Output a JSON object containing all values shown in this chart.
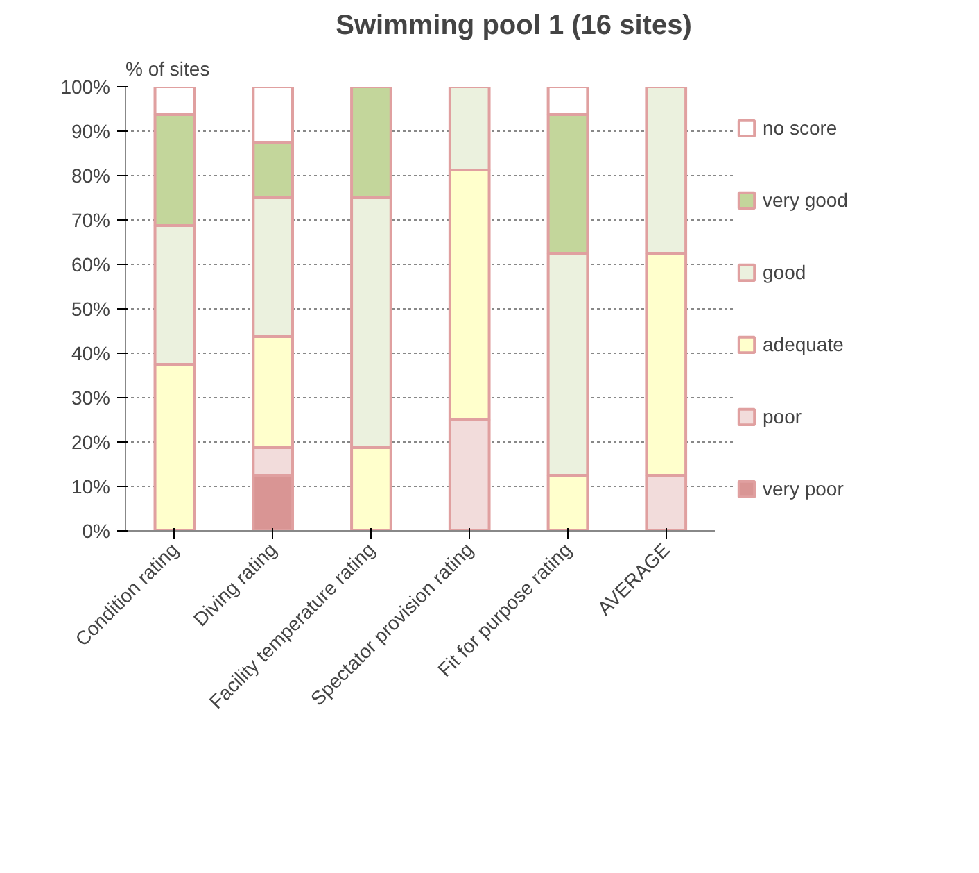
{
  "chart_data": {
    "type": "bar",
    "title": "Swimming pool 1 (16 sites)",
    "ylabel": "% of sites",
    "stacked": true,
    "categories": [
      "Condition rating",
      "Diving rating",
      "Facility temperature rating",
      "Spectator provision rating",
      "Fit for purpose rating",
      "AVERAGE"
    ],
    "series": [
      {
        "name": "very poor",
        "color": "#d99594",
        "values": [
          0,
          12.5,
          0,
          0,
          0,
          0
        ]
      },
      {
        "name": "poor",
        "color": "#f2dcdb",
        "values": [
          0,
          6.25,
          0,
          25,
          0,
          12.5
        ]
      },
      {
        "name": "adequate",
        "color": "#ffffcc",
        "values": [
          37.5,
          25,
          18.75,
          56.25,
          12.5,
          50
        ]
      },
      {
        "name": "good",
        "color": "#ebf1de",
        "values": [
          31.25,
          31.25,
          56.25,
          18.75,
          50,
          37.5
        ]
      },
      {
        "name": "very good",
        "color": "#c3d69b",
        "values": [
          25,
          12.5,
          25,
          0,
          31.25,
          0
        ]
      },
      {
        "name": "no score",
        "color": "#ffffff",
        "values": [
          6.25,
          12.5,
          0,
          0,
          6.25,
          0
        ]
      }
    ],
    "ylim": [
      0,
      100
    ],
    "yticks": [
      {
        "value": 0,
        "label": "0%"
      },
      {
        "value": 10,
        "label": "10%"
      },
      {
        "value": 20,
        "label": "20%"
      },
      {
        "value": 30,
        "label": "30%"
      },
      {
        "value": 40,
        "label": "40%"
      },
      {
        "value": 50,
        "label": "50%"
      },
      {
        "value": 60,
        "label": "60%"
      },
      {
        "value": 70,
        "label": "70%"
      },
      {
        "value": 80,
        "label": "80%"
      },
      {
        "value": 90,
        "label": "90%"
      },
      {
        "value": 100,
        "label": "100%"
      }
    ],
    "grid": "y",
    "legend": "right"
  }
}
